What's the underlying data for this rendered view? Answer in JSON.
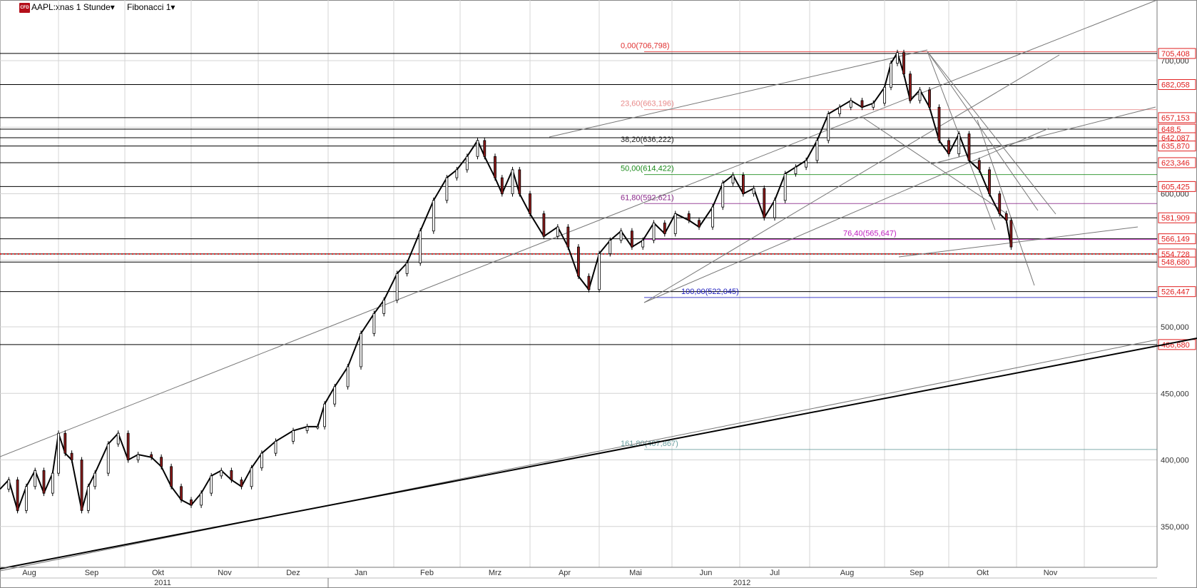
{
  "toolbar": {
    "logo_text": "CFD",
    "symbol": "AAPL:xnas 1 Stunde",
    "study": "Fibonacci 1",
    "dropdown_icon": "caret-down-icon"
  },
  "chart_data": {
    "type": "candlestick",
    "title": "",
    "y_axis_position": "right",
    "ylim": [
      322,
      820
    ],
    "grid": true,
    "y_ticks": [
      {
        "value": 350,
        "label": "350,000"
      },
      {
        "value": 400,
        "label": "400,000"
      },
      {
        "value": 450,
        "label": "450,000"
      },
      {
        "value": 500,
        "label": "500,000"
      },
      {
        "value": 550,
        "label": "550,000"
      },
      {
        "value": 600,
        "label": "600,000"
      },
      {
        "value": 650,
        "label": "650,000"
      },
      {
        "value": 700,
        "label": "700,000"
      }
    ],
    "months": [
      {
        "label": "Aug",
        "i": 0
      },
      {
        "label": "Sep",
        "i": 1
      },
      {
        "label": "Okt",
        "i": 2
      },
      {
        "label": "Nov",
        "i": 3
      },
      {
        "label": "Dez",
        "i": 4
      },
      {
        "label": "Jan",
        "i": 5
      },
      {
        "label": "Feb",
        "i": 6
      },
      {
        "label": "Mrz",
        "i": 7
      },
      {
        "label": "Apr",
        "i": 8
      },
      {
        "label": "Mai",
        "i": 9
      },
      {
        "label": "Jun",
        "i": 10
      },
      {
        "label": "Jul",
        "i": 11
      },
      {
        "label": "Aug",
        "i": 12
      },
      {
        "label": "Sep",
        "i": 13
      },
      {
        "label": "Okt",
        "i": 14
      },
      {
        "label": "Nov",
        "i": 15
      }
    ],
    "years": [
      {
        "label": "2011"
      },
      {
        "label": "2012"
      }
    ],
    "price_levels": [
      {
        "value": 705.408,
        "label": "705,408",
        "color": "#e02020"
      },
      {
        "value": 682.058,
        "label": "682,058",
        "color": "#e02020"
      },
      {
        "value": 657.153,
        "label": "657,153",
        "color": "#e02020"
      },
      {
        "value": 648.5,
        "label": "648,5",
        "color": "#e02020"
      },
      {
        "value": 642.087,
        "label": "642,087",
        "color": "#e02020"
      },
      {
        "value": 635.87,
        "label": "635,870",
        "color": "#e02020"
      },
      {
        "value": 623.346,
        "label": "623,346",
        "color": "#e02020"
      },
      {
        "value": 605.425,
        "label": "605,425",
        "color": "#e02020"
      },
      {
        "value": 581.909,
        "label": "581,909",
        "color": "#e02020"
      },
      {
        "value": 566.149,
        "label": "566,149",
        "color": "#e02020"
      },
      {
        "value": 554.728,
        "label": "554,728",
        "color": "#e02020"
      },
      {
        "value": 548.68,
        "label": "548,680",
        "color": "#e02020"
      },
      {
        "value": 526.447,
        "label": "526,447",
        "color": "#e02020"
      },
      {
        "value": 486.68,
        "label": "486,680",
        "color": "#e02020"
      }
    ],
    "fibonacci": [
      {
        "label": "0,00(706,798)",
        "value": 706.798,
        "color": "#e03030"
      },
      {
        "label": "23,60(663,196)",
        "value": 663.196,
        "color": "#e88a8a"
      },
      {
        "label": "38,20(636,222)",
        "value": 636.222,
        "color": "#222222"
      },
      {
        "label": "50,00(614,422)",
        "value": 614.422,
        "color": "#1a8a1a"
      },
      {
        "label": "61,80(592,621)",
        "value": 592.621,
        "color": "#8a2a8a"
      },
      {
        "label": "76,40(565,647)",
        "value": 565.647,
        "color": "#c020c0"
      },
      {
        "label": "100,00(522,045)",
        "value": 522.045,
        "color": "#2020c0"
      },
      {
        "label": "161,80(407,867)",
        "value": 407.867,
        "color": "#6aa0a0"
      }
    ],
    "current_price": 554.728,
    "price_series": [
      {
        "i": 0,
        "v": 378
      },
      {
        "i": 0.15,
        "v": 385
      },
      {
        "i": 0.3,
        "v": 362
      },
      {
        "i": 0.45,
        "v": 380
      },
      {
        "i": 0.6,
        "v": 392
      },
      {
        "i": 0.75,
        "v": 375
      },
      {
        "i": 0.9,
        "v": 390
      },
      {
        "i": 1.0,
        "v": 420
      },
      {
        "i": 1.1,
        "v": 405
      },
      {
        "i": 1.2,
        "v": 400
      },
      {
        "i": 1.35,
        "v": 362
      },
      {
        "i": 1.45,
        "v": 380
      },
      {
        "i": 1.55,
        "v": 390
      },
      {
        "i": 1.75,
        "v": 412
      },
      {
        "i": 1.9,
        "v": 420
      },
      {
        "i": 2.05,
        "v": 400
      },
      {
        "i": 2.2,
        "v": 404
      },
      {
        "i": 2.4,
        "v": 402
      },
      {
        "i": 2.55,
        "v": 395
      },
      {
        "i": 2.7,
        "v": 380
      },
      {
        "i": 2.85,
        "v": 370
      },
      {
        "i": 3.0,
        "v": 366
      },
      {
        "i": 3.15,
        "v": 375
      },
      {
        "i": 3.3,
        "v": 388
      },
      {
        "i": 3.45,
        "v": 392
      },
      {
        "i": 3.6,
        "v": 385
      },
      {
        "i": 3.75,
        "v": 380
      },
      {
        "i": 3.9,
        "v": 394
      },
      {
        "i": 4.05,
        "v": 405
      },
      {
        "i": 4.25,
        "v": 414
      },
      {
        "i": 4.5,
        "v": 422
      },
      {
        "i": 4.7,
        "v": 425
      },
      {
        "i": 4.85,
        "v": 425
      },
      {
        "i": 4.95,
        "v": 442
      },
      {
        "i": 5.1,
        "v": 455
      },
      {
        "i": 5.3,
        "v": 470
      },
      {
        "i": 5.5,
        "v": 495
      },
      {
        "i": 5.7,
        "v": 510
      },
      {
        "i": 5.85,
        "v": 520
      },
      {
        "i": 6.05,
        "v": 540
      },
      {
        "i": 6.2,
        "v": 548
      },
      {
        "i": 6.4,
        "v": 572
      },
      {
        "i": 6.6,
        "v": 595
      },
      {
        "i": 6.8,
        "v": 612
      },
      {
        "i": 6.95,
        "v": 618
      },
      {
        "i": 7.1,
        "v": 628
      },
      {
        "i": 7.25,
        "v": 640
      },
      {
        "i": 7.35,
        "v": 628
      },
      {
        "i": 7.5,
        "v": 612
      },
      {
        "i": 7.6,
        "v": 600
      },
      {
        "i": 7.75,
        "v": 618
      },
      {
        "i": 7.85,
        "v": 600
      },
      {
        "i": 8.0,
        "v": 585
      },
      {
        "i": 8.2,
        "v": 568
      },
      {
        "i": 8.4,
        "v": 575
      },
      {
        "i": 8.55,
        "v": 560
      },
      {
        "i": 8.7,
        "v": 538
      },
      {
        "i": 8.85,
        "v": 528
      },
      {
        "i": 9.0,
        "v": 555
      },
      {
        "i": 9.15,
        "v": 565
      },
      {
        "i": 9.3,
        "v": 572
      },
      {
        "i": 9.45,
        "v": 560
      },
      {
        "i": 9.6,
        "v": 565
      },
      {
        "i": 9.75,
        "v": 578
      },
      {
        "i": 9.9,
        "v": 570
      },
      {
        "i": 10.05,
        "v": 585
      },
      {
        "i": 10.25,
        "v": 580
      },
      {
        "i": 10.4,
        "v": 575
      },
      {
        "i": 10.6,
        "v": 590
      },
      {
        "i": 10.75,
        "v": 608
      },
      {
        "i": 10.9,
        "v": 614
      },
      {
        "i": 11.05,
        "v": 600
      },
      {
        "i": 11.2,
        "v": 604
      },
      {
        "i": 11.35,
        "v": 582
      },
      {
        "i": 11.5,
        "v": 595
      },
      {
        "i": 11.65,
        "v": 615
      },
      {
        "i": 11.8,
        "v": 620
      },
      {
        "i": 11.95,
        "v": 625
      },
      {
        "i": 12.1,
        "v": 640
      },
      {
        "i": 12.25,
        "v": 660
      },
      {
        "i": 12.4,
        "v": 665
      },
      {
        "i": 12.55,
        "v": 670
      },
      {
        "i": 12.7,
        "v": 665
      },
      {
        "i": 12.85,
        "v": 668
      },
      {
        "i": 13.0,
        "v": 680
      },
      {
        "i": 13.1,
        "v": 698
      },
      {
        "i": 13.2,
        "v": 706
      },
      {
        "i": 13.3,
        "v": 690
      },
      {
        "i": 13.4,
        "v": 670
      },
      {
        "i": 13.55,
        "v": 678
      },
      {
        "i": 13.7,
        "v": 665
      },
      {
        "i": 13.85,
        "v": 640
      },
      {
        "i": 14.0,
        "v": 630
      },
      {
        "i": 14.15,
        "v": 645
      },
      {
        "i": 14.3,
        "v": 625
      },
      {
        "i": 14.45,
        "v": 618
      },
      {
        "i": 14.6,
        "v": 600
      },
      {
        "i": 14.75,
        "v": 585
      },
      {
        "i": 14.85,
        "v": 580
      },
      {
        "i": 14.92,
        "v": 560
      }
    ]
  }
}
